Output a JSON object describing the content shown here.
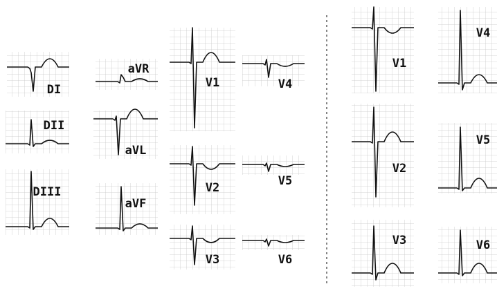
{
  "left_leads": [
    "DI",
    "DII",
    "DIII",
    "aVR",
    "aVL",
    "aVF",
    "V1",
    "V2",
    "V3",
    "V4",
    "V5",
    "V6"
  ],
  "right_leads": [
    "V1",
    "V2",
    "V3",
    "V4",
    "V5",
    "V6"
  ]
}
